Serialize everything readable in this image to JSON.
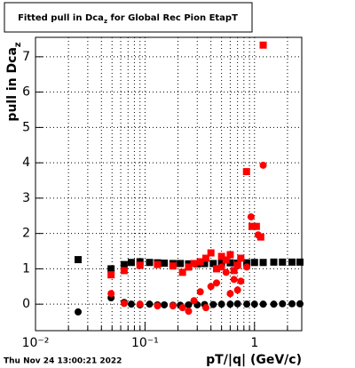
{
  "chart_data": {
    "type": "scatter",
    "title": [
      {
        "text": "Fitted pull in Dca"
      },
      {
        "text": "z",
        "sub": true
      },
      {
        "text": " for Global Rec Pion EtapT"
      }
    ],
    "ylabel": [
      {
        "text": "pull in Dca"
      },
      {
        "text": "z",
        "sub": true
      }
    ],
    "xlabel": "pT/|q| (GeV/c)",
    "timestamp": "Thu Nov 24 13:00:21 2022",
    "xlog": true,
    "grid": true,
    "xlim": [
      0.01,
      2.7
    ],
    "ylim": [
      -0.75,
      7.55
    ],
    "xticks": [
      {
        "value": 0.01,
        "label": "10⁻²"
      },
      {
        "value": 0.1,
        "label": "10⁻¹"
      },
      1
    ],
    "xminorticks": [
      0.02,
      0.03,
      0.04,
      0.05,
      0.06,
      0.07,
      0.08,
      0.09,
      0.2,
      0.3,
      0.4,
      0.5,
      0.6,
      0.7,
      0.8,
      0.9,
      2
    ],
    "yticks": [
      0,
      1,
      2,
      3,
      4,
      5,
      6,
      7
    ],
    "series": [
      {
        "marker": "square",
        "color": "#000000",
        "x": [
          0.0245,
          0.049,
          0.0645,
          0.075,
          0.09,
          0.11,
          0.13,
          0.15,
          0.18,
          0.21,
          0.25,
          0.3,
          0.35,
          0.42,
          0.5,
          0.6,
          0.7,
          0.85,
          1.0,
          1.2,
          1.5,
          1.8,
          2.2,
          2.6
        ],
        "values": [
          1.26,
          1.0,
          1.12,
          1.18,
          1.2,
          1.18,
          1.17,
          1.16,
          1.15,
          1.15,
          1.14,
          1.14,
          1.15,
          1.15,
          1.16,
          1.17,
          1.16,
          1.17,
          1.18,
          1.18,
          1.19,
          1.19,
          1.19,
          1.19
        ]
      },
      {
        "marker": "circle",
        "color": "#000000",
        "x": [
          0.0245,
          0.049,
          0.0645,
          0.075,
          0.09,
          0.11,
          0.13,
          0.15,
          0.18,
          0.21,
          0.25,
          0.3,
          0.35,
          0.42,
          0.5,
          0.6,
          0.7,
          0.85,
          1.0,
          1.2,
          1.5,
          1.8,
          2.2,
          2.6
        ],
        "values": [
          -0.22,
          0.18,
          0.05,
          0.0,
          -0.02,
          0.0,
          -0.02,
          -0.02,
          -0.03,
          -0.03,
          -0.02,
          -0.02,
          -0.01,
          -0.01,
          0.0,
          0.0,
          0.01,
          0.0,
          0.0,
          0.0,
          0.0,
          0.01,
          0.01,
          0.01
        ]
      },
      {
        "marker": "square",
        "color": "#ff0000",
        "x": [
          0.049,
          0.0645,
          0.09,
          0.13,
          0.18,
          0.22,
          0.25,
          0.28,
          0.32,
          0.36,
          0.4,
          0.45,
          0.5,
          0.55,
          0.6,
          0.65,
          0.7,
          0.75,
          0.845,
          0.95,
          1.04,
          1.14,
          1.2
        ],
        "values": [
          0.83,
          0.95,
          1.1,
          1.12,
          1.08,
          0.9,
          1.05,
          1.15,
          1.2,
          1.3,
          1.45,
          1.0,
          1.35,
          1.25,
          1.4,
          0.95,
          1.1,
          1.3,
          3.75,
          2.2,
          2.2,
          1.9,
          7.33
        ]
      },
      {
        "marker": "circle",
        "color": "#ff0000",
        "x": [
          0.049,
          0.0645,
          0.09,
          0.13,
          0.18,
          0.22,
          0.25,
          0.28,
          0.32,
          0.36,
          0.4,
          0.45,
          0.5,
          0.55,
          0.6,
          0.65,
          0.7,
          0.75,
          0.85,
          0.93,
          1.08,
          1.2
        ],
        "values": [
          0.3,
          0.02,
          0.0,
          -0.05,
          -0.05,
          -0.1,
          -0.2,
          0.1,
          0.35,
          -0.1,
          0.5,
          0.6,
          1.05,
          0.9,
          0.3,
          0.7,
          0.4,
          0.65,
          1.05,
          2.47,
          1.96,
          3.93
        ]
      }
    ]
  }
}
